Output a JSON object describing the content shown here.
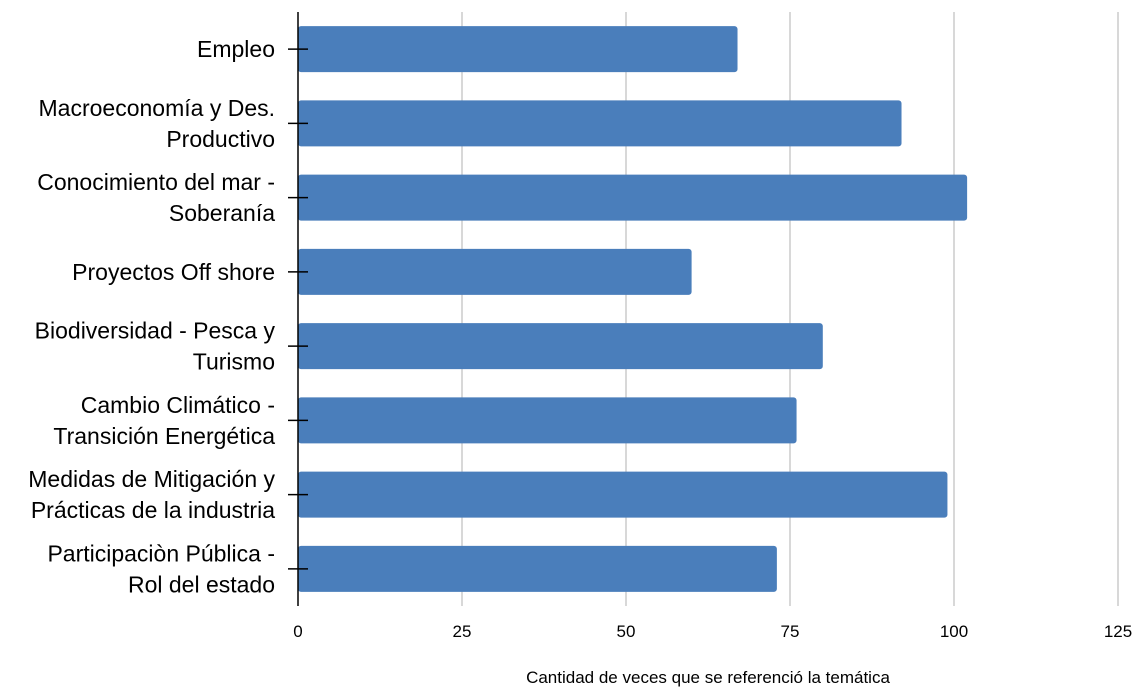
{
  "chart_data": {
    "type": "bar",
    "orientation": "horizontal",
    "categories": [
      [
        "Empleo"
      ],
      [
        "Macroeconomía y Des.",
        "Productivo"
      ],
      [
        "Conocimiento del mar -",
        "Soberanía"
      ],
      [
        "Proyectos Off shore"
      ],
      [
        "Biodiversidad - Pesca y",
        "Turismo"
      ],
      [
        "Cambio Climático -",
        "Transición Energética"
      ],
      [
        "Medidas de Mitigación y",
        "Prácticas de la industria"
      ],
      [
        "Participaciòn Pública -",
        "Rol del estado"
      ]
    ],
    "values": [
      67,
      92,
      102,
      60,
      80,
      76,
      99,
      73
    ],
    "xlabel": "Cantidad de veces que se referenció la temática",
    "ylabel": "",
    "xlim": [
      0,
      125
    ],
    "xticks": [
      0,
      25,
      50,
      75,
      100,
      125
    ],
    "xtick_labels": [
      "0",
      "25",
      "50",
      "75",
      "100",
      "125"
    ],
    "grid": "vertical",
    "legend": "none",
    "bar_color": "#4a7ebb"
  }
}
